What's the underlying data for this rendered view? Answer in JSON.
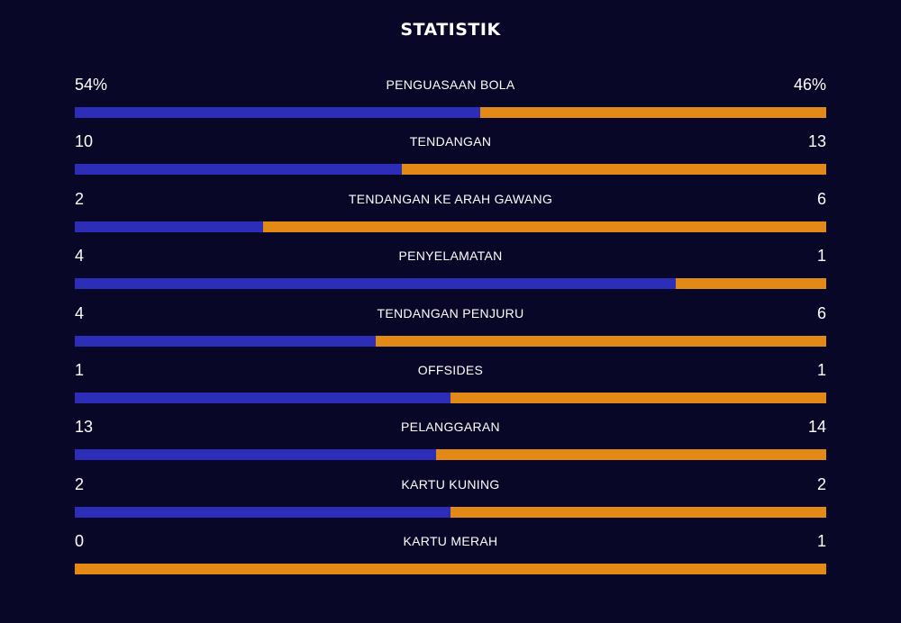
{
  "title": "STATISTIK",
  "colors": {
    "background": "#080727",
    "left_team": "#2d2eb8",
    "right_team": "#e38a16"
  },
  "stats": [
    {
      "label": "PENGUASAAN BOLA",
      "left": "54%",
      "right": "46%",
      "left_share": 0.54
    },
    {
      "label": "TENDANGAN",
      "left": "10",
      "right": "13",
      "left_share": 0.435
    },
    {
      "label": "TENDANGAN KE ARAH GAWANG",
      "left": "2",
      "right": "6",
      "left_share": 0.25
    },
    {
      "label": "PENYELAMATAN",
      "left": "4",
      "right": "1",
      "left_share": 0.8
    },
    {
      "label": "TENDANGAN PENJURU",
      "left": "4",
      "right": "6",
      "left_share": 0.4
    },
    {
      "label": "OFFSIDES",
      "left": "1",
      "right": "1",
      "left_share": 0.5
    },
    {
      "label": "PELANGGARAN",
      "left": "13",
      "right": "14",
      "left_share": 0.481
    },
    {
      "label": "KARTU KUNING",
      "left": "2",
      "right": "2",
      "left_share": 0.5
    },
    {
      "label": "KARTU MERAH",
      "left": "0",
      "right": "1",
      "left_share": 0.0
    }
  ]
}
